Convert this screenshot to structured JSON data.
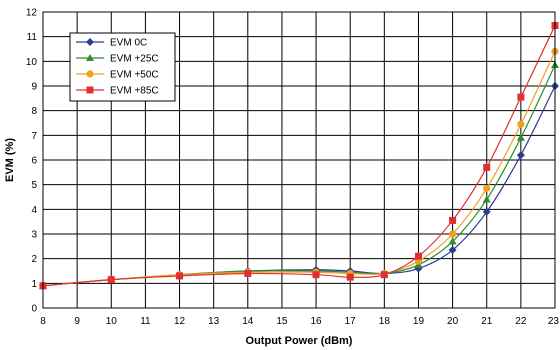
{
  "chart_data": {
    "type": "line",
    "xlabel": "Output Power (dBm)",
    "ylabel": "EVM (%)",
    "xlim": [
      8,
      23
    ],
    "ylim": [
      0,
      12
    ],
    "xticks": [
      8,
      9,
      10,
      11,
      12,
      13,
      14,
      15,
      16,
      17,
      18,
      19,
      20,
      21,
      22,
      23
    ],
    "yticks": [
      0,
      1,
      2,
      3,
      4,
      5,
      6,
      7,
      8,
      9,
      10,
      11,
      12
    ],
    "grid": true,
    "legend_position": "top-left",
    "x": [
      8,
      10,
      12,
      14,
      16,
      17,
      18,
      19,
      20,
      21,
      22,
      23
    ],
    "series": [
      {
        "name": "EVM 0C",
        "color": "#2a3d91",
        "marker": "diamond",
        "values": [
          0.9,
          1.15,
          1.35,
          1.5,
          1.55,
          1.5,
          1.4,
          1.6,
          2.35,
          3.9,
          6.2,
          9.0
        ]
      },
      {
        "name": "EVM +25C",
        "color": "#2e8b2e",
        "marker": "triangle",
        "values": [
          0.9,
          1.15,
          1.35,
          1.5,
          1.5,
          1.45,
          1.4,
          1.75,
          2.7,
          4.4,
          6.9,
          9.85
        ]
      },
      {
        "name": "EVM +50C",
        "color": "#f0a020",
        "marker": "circle",
        "values": [
          0.9,
          1.15,
          1.35,
          1.45,
          1.45,
          1.4,
          1.4,
          1.9,
          3.0,
          4.85,
          7.45,
          10.4
        ]
      },
      {
        "name": "EVM +85C",
        "color": "#e03030",
        "marker": "square",
        "values": [
          0.9,
          1.15,
          1.3,
          1.4,
          1.35,
          1.25,
          1.35,
          2.1,
          3.55,
          5.7,
          8.55,
          11.45
        ]
      }
    ]
  }
}
